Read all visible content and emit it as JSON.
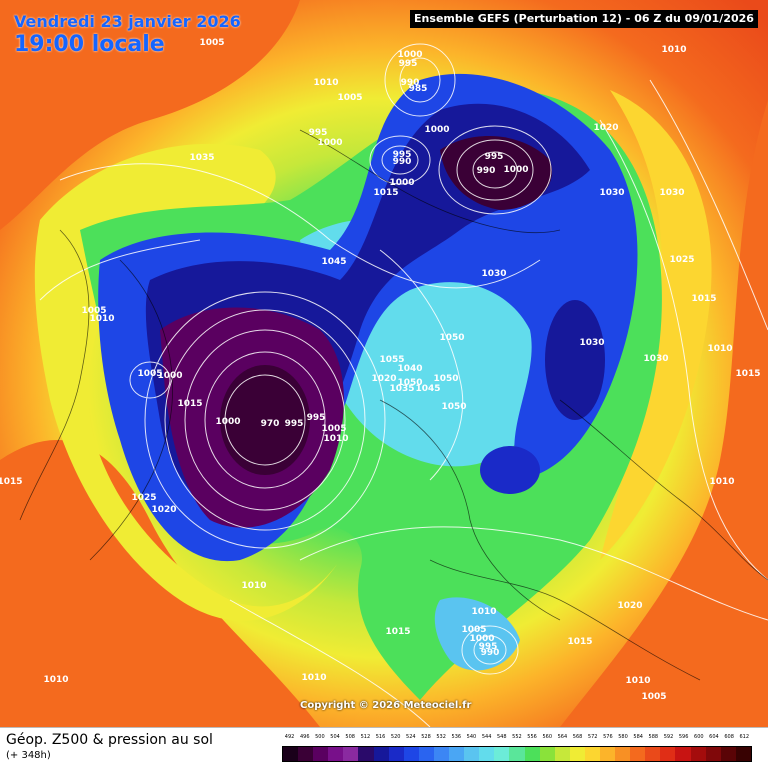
{
  "header": {
    "date_label": "Vendredi 23 janvier 2026",
    "time_label": "19:00 locale",
    "run_label": "Ensemble GEFS  (Perturbation 12)  -  06 Z du 09/01/2026"
  },
  "copyright": "Copyright © 2026 Meteociel.fr",
  "footer": {
    "title": "Géop. Z500 & pression au sol",
    "subtitle": "(+ 348h)"
  },
  "scale": {
    "labels": [
      "492",
      "496",
      "500",
      "504",
      "508",
      "512",
      "516",
      "520",
      "524",
      "528",
      "532",
      "536",
      "540",
      "544",
      "548",
      "552",
      "556",
      "560",
      "564",
      "568",
      "572",
      "576",
      "580",
      "584",
      "588",
      "592",
      "596",
      "600",
      "604",
      "608",
      "612"
    ],
    "colors": [
      "#1a001a",
      "#3a0036",
      "#5a0060",
      "#78108a",
      "#8a2aa0",
      "#2a0a6a",
      "#16189a",
      "#1a2ac8",
      "#1e46e6",
      "#2a64f0",
      "#3c86f4",
      "#4aa6f4",
      "#5ac4f0",
      "#62dcec",
      "#6cecd8",
      "#5ae69a",
      "#4ce05a",
      "#8ae23a",
      "#c6e83a",
      "#f0ec34",
      "#fcd630",
      "#fcb42a",
      "#f89024",
      "#f46a1e",
      "#ea4a1a",
      "#e02e16",
      "#c81412",
      "#a40c0c",
      "#80080a",
      "#5a0406",
      "#380202"
    ]
  },
  "pressure_labels": [
    {
      "text": "1005"
    },
    {
      "text": "1010"
    },
    {
      "text": "1035"
    },
    {
      "text": "995"
    },
    {
      "text": "1000"
    },
    {
      "text": "990"
    },
    {
      "text": "985"
    },
    {
      "text": "1010"
    },
    {
      "text": "1005"
    },
    {
      "text": "995"
    },
    {
      "text": "1000"
    },
    {
      "text": "1000"
    },
    {
      "text": "995"
    },
    {
      "text": "990"
    },
    {
      "text": "995"
    },
    {
      "text": "990"
    },
    {
      "text": "1000"
    },
    {
      "text": "1020"
    },
    {
      "text": "1015"
    },
    {
      "text": "1000"
    },
    {
      "text": "1030"
    },
    {
      "text": "1030"
    },
    {
      "text": "1045"
    },
    {
      "text": "1030"
    },
    {
      "text": "1025"
    },
    {
      "text": "1015"
    },
    {
      "text": "1005"
    },
    {
      "text": "1010"
    },
    {
      "text": "1050"
    },
    {
      "text": "1030"
    },
    {
      "text": "1010"
    },
    {
      "text": "1005"
    },
    {
      "text": "1000"
    },
    {
      "text": "1015"
    },
    {
      "text": "1055"
    },
    {
      "text": "1040"
    },
    {
      "text": "1050"
    },
    {
      "text": "1020"
    },
    {
      "text": "1035"
    },
    {
      "text": "1045"
    },
    {
      "text": "1050"
    },
    {
      "text": "1030"
    },
    {
      "text": "1015"
    },
    {
      "text": "1000"
    },
    {
      "text": "970"
    },
    {
      "text": "995"
    },
    {
      "text": "995"
    },
    {
      "text": "1005"
    },
    {
      "text": "1010"
    },
    {
      "text": "1050"
    },
    {
      "text": "1025"
    },
    {
      "text": "1020"
    },
    {
      "text": "1010"
    },
    {
      "text": "1015"
    },
    {
      "text": "1010"
    },
    {
      "text": "1020"
    },
    {
      "text": "1010"
    },
    {
      "text": "1015"
    },
    {
      "text": "1005"
    },
    {
      "text": "1000"
    },
    {
      "text": "995"
    },
    {
      "text": "990"
    },
    {
      "text": "1015"
    },
    {
      "text": "1010"
    },
    {
      "text": "1010"
    },
    {
      "text": "1010"
    },
    {
      "text": "1005"
    }
  ]
}
